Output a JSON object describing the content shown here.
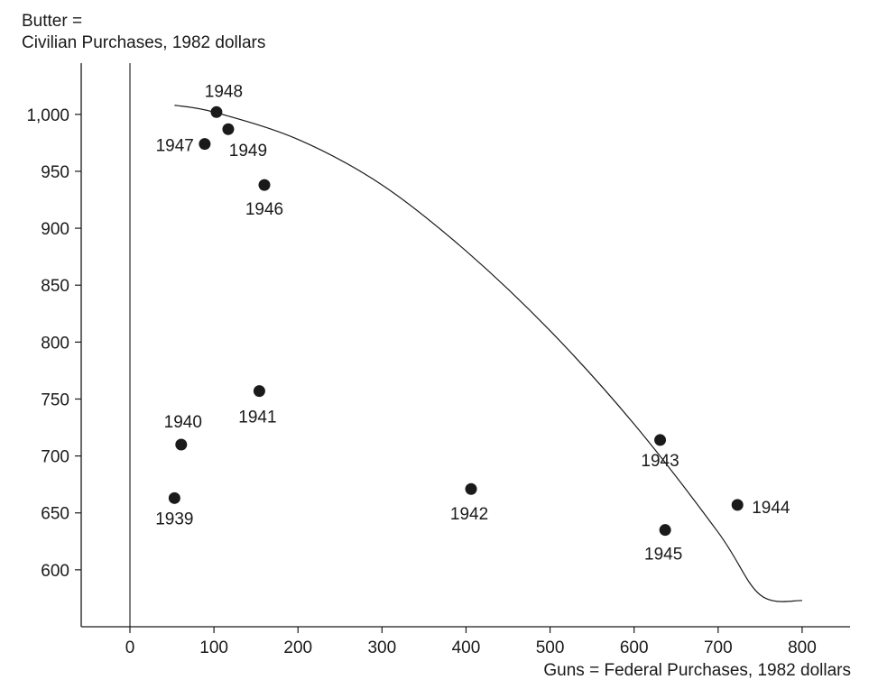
{
  "chart_data": {
    "type": "scatter",
    "ylabel_lines": [
      "Butter =",
      "Civilian Purchases, 1982 dollars"
    ],
    "xlabel": "Guns = Federal Purchases, 1982 dollars",
    "xlim": [
      -58,
      857
    ],
    "ylim": [
      550,
      1045
    ],
    "x_ticks": [
      0,
      100,
      200,
      300,
      400,
      500,
      600,
      700,
      800
    ],
    "x_tick_labels": [
      "0",
      "100",
      "200",
      "300",
      "400",
      "500",
      "600",
      "700",
      "800"
    ],
    "y_ticks": [
      600,
      650,
      700,
      750,
      800,
      850,
      900,
      950,
      1000
    ],
    "y_tick_labels": [
      "600",
      "650",
      "700",
      "750",
      "800",
      "850",
      "900",
      "950",
      "1,000"
    ],
    "grid": false,
    "marker_color": "#1a1a1a",
    "points": [
      {
        "label": "1939",
        "x": 53,
        "y": 663
      },
      {
        "label": "1940",
        "x": 61,
        "y": 710
      },
      {
        "label": "1941",
        "x": 154,
        "y": 757
      },
      {
        "label": "1942",
        "x": 406,
        "y": 671
      },
      {
        "label": "1943",
        "x": 631,
        "y": 714
      },
      {
        "label": "1944",
        "x": 723,
        "y": 657
      },
      {
        "label": "1945",
        "x": 637,
        "y": 635
      },
      {
        "label": "1946",
        "x": 160,
        "y": 938
      },
      {
        "label": "1947",
        "x": 89,
        "y": 974
      },
      {
        "label": "1948",
        "x": 103,
        "y": 1002
      },
      {
        "label": "1949",
        "x": 117,
        "y": 987
      }
    ],
    "frontier_curve": {
      "x": [
        53,
        100,
        200,
        300,
        400,
        500,
        600,
        700,
        750,
        800
      ],
      "y": [
        1008,
        1002,
        978,
        938,
        880,
        810,
        728,
        633,
        578,
        573
      ]
    }
  }
}
